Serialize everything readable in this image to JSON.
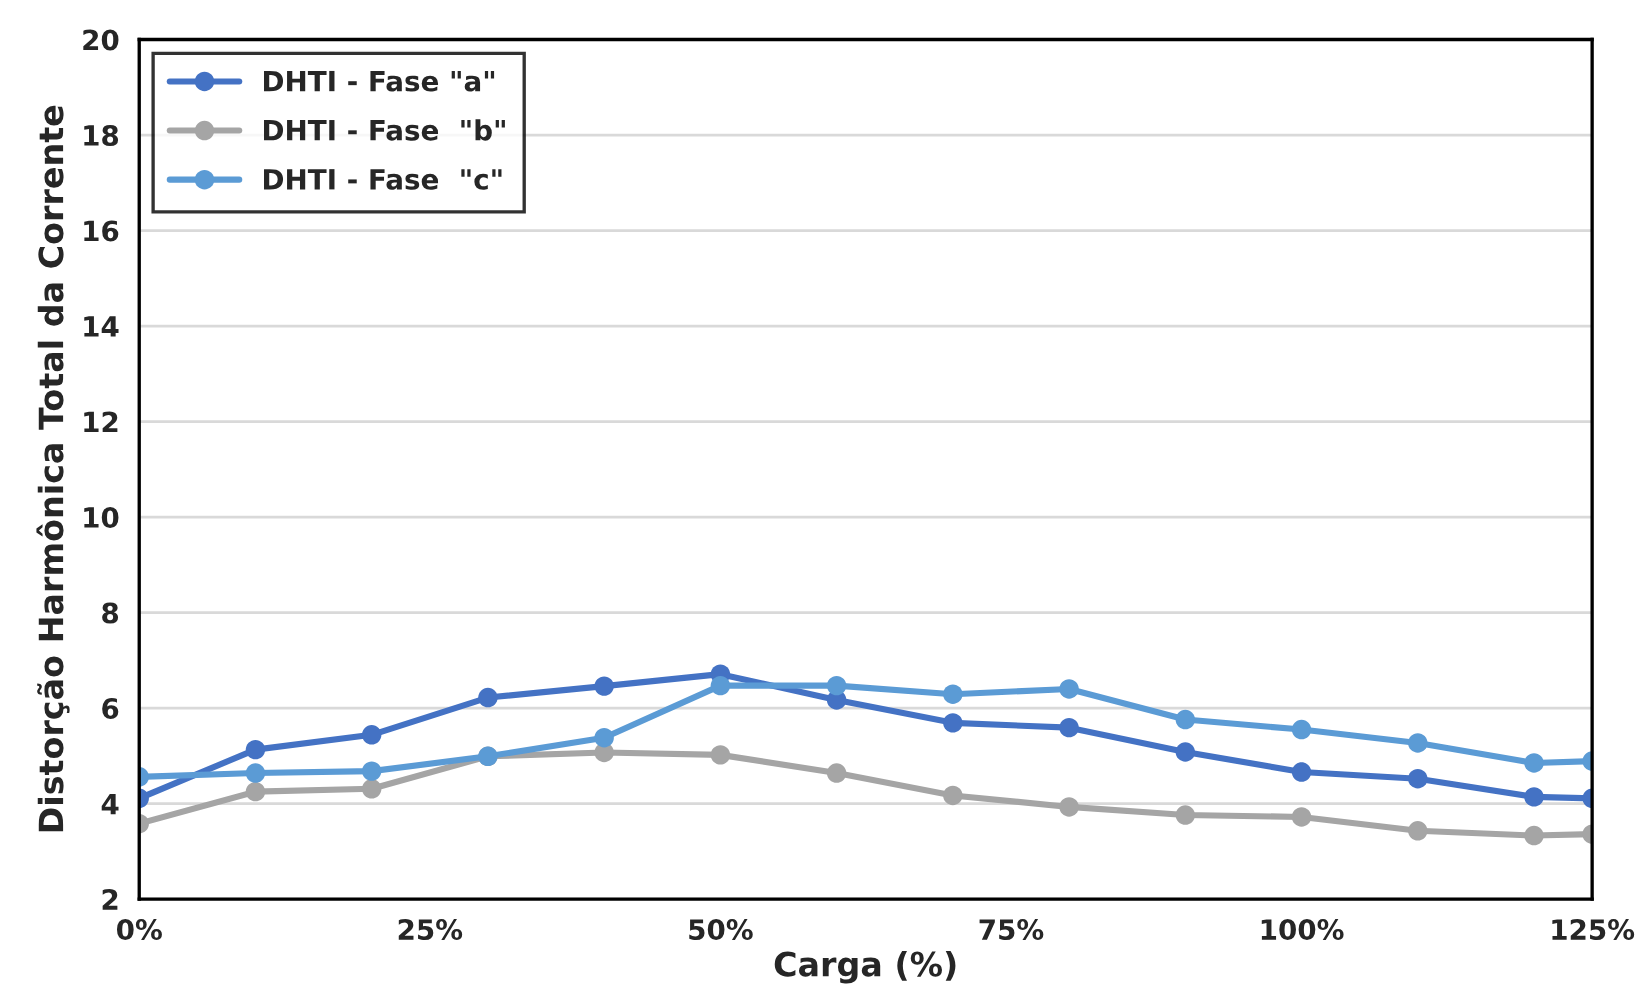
{
  "chart_data": {
    "type": "line",
    "xlabel": "Carga (%)",
    "ylabel": "Distorção Harmônica Total da Corrente",
    "x": [
      0,
      10,
      20,
      30,
      40,
      50,
      60,
      70,
      80,
      90,
      100,
      110,
      120,
      125
    ],
    "series": [
      {
        "name": "DHTI - Fase \"a\"",
        "color": "#4472c4",
        "values": [
          4.11,
          5.13,
          5.44,
          6.22,
          6.46,
          6.71,
          6.17,
          5.69,
          5.59,
          5.08,
          4.66,
          4.52,
          4.14,
          4.11
        ]
      },
      {
        "name": "DHTI - Fase  \"b\"",
        "color": "#a5a5a5",
        "values": [
          3.58,
          4.25,
          4.31,
          4.99,
          5.07,
          5.02,
          4.64,
          4.17,
          3.93,
          3.76,
          3.72,
          3.43,
          3.33,
          3.36
        ]
      },
      {
        "name": "DHTI - Fase  \"c\"",
        "color": "#5b9bd5",
        "values": [
          4.56,
          4.64,
          4.68,
          4.99,
          5.38,
          6.47,
          6.47,
          6.29,
          6.4,
          5.76,
          5.55,
          5.27,
          4.85,
          4.89
        ]
      }
    ],
    "xlim": [
      0,
      125
    ],
    "xticks": [
      {
        "value": 0,
        "label": "0%"
      },
      {
        "value": 25,
        "label": "25%"
      },
      {
        "value": 50,
        "label": "50%"
      },
      {
        "value": 75,
        "label": "75%"
      },
      {
        "value": 100,
        "label": "100%"
      },
      {
        "value": 125,
        "label": "125%"
      }
    ],
    "ylim": [
      2,
      20
    ],
    "yticks": [
      2,
      4,
      6,
      8,
      10,
      12,
      14,
      16,
      18,
      20
    ],
    "grid": "y",
    "legend": "top left",
    "marker": "circle",
    "line_style": "solid"
  }
}
